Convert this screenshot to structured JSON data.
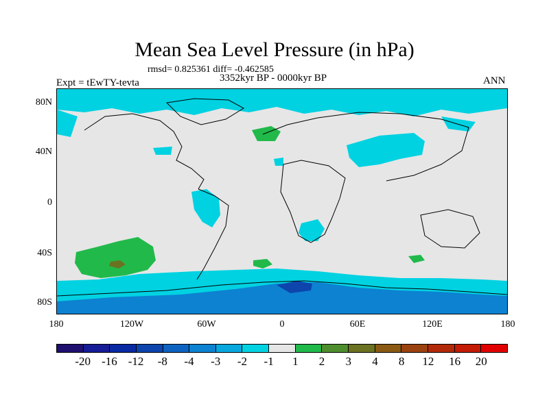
{
  "title": "Mean Sea Level Pressure (in hPa)",
  "subtitle_stats": "rmsd= 0.825361 diff= -0.462585",
  "subtitle_period": "3352kyr BP - 0000kyr BP",
  "experiment_label": "Expt = tEwTY-tevta",
  "season_label": "ANN",
  "y_axis_labels": [
    "80N",
    "40N",
    "0",
    "40S",
    "80S"
  ],
  "x_axis_labels": [
    "180",
    "120W",
    "60W",
    "0",
    "60E",
    "120E",
    "180"
  ],
  "colorbar": {
    "colors": [
      "#1f0f6e",
      "#161b96",
      "#0a2aa4",
      "#0d45ad",
      "#0f63c0",
      "#0d82d1",
      "#08a8df",
      "#00d2e2",
      "#e6e6e6",
      "#21b94a",
      "#4f8e2f",
      "#6b7221",
      "#8a5a14",
      "#9a4310",
      "#b22a0a",
      "#c41b06",
      "#e10000"
    ],
    "labels": [
      "-20",
      "-16",
      "-12",
      "-8",
      "-4",
      "-3",
      "-2",
      "-1",
      "1",
      "2",
      "3",
      "4",
      "8",
      "12",
      "16",
      "20"
    ]
  },
  "map_colors": {
    "neutral": "#e6e6e6",
    "light_blue": "#00d2e2",
    "mid_blue": "#0d82d1",
    "dark_blue": "#0d45ad",
    "green": "#21b94a",
    "olive": "#6b7221",
    "coast": "#000000"
  }
}
